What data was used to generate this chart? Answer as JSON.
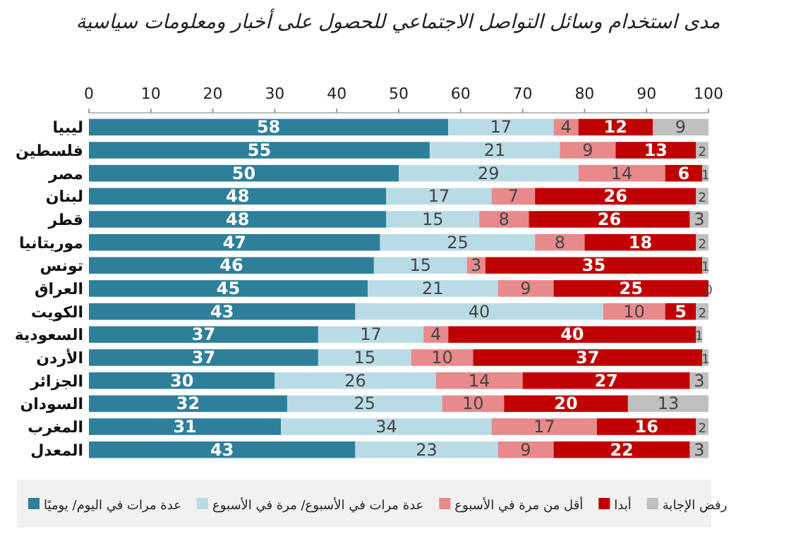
{
  "chart_data": {
    "type": "bar",
    "orientation": "horizontal",
    "stacked": true,
    "title": "مدى استخدام وسائل التواصل الاجتماعي للحصول على أخبار ومعلومات سياسية",
    "categories": [
      "ليبيا",
      "فلسطين",
      "مصر",
      "لبنان",
      "قطر",
      "موريتانيا",
      "تونس",
      "العراق",
      "الكويت",
      "السعودية",
      "الأردن",
      "الجزائر",
      "السودان",
      "المغرب",
      "المعدل"
    ],
    "series": [
      {
        "name": "عدة مرات في اليوم/ يوميًا",
        "color": "#2e7f9a",
        "values": [
          58,
          55,
          50,
          48,
          48,
          47,
          46,
          45,
          43,
          37,
          37,
          30,
          32,
          31,
          43
        ]
      },
      {
        "name": "عدة مرات في الأسبوع/ مرة في الأسبوع",
        "color": "#b9dbe6",
        "values": [
          17,
          21,
          29,
          17,
          15,
          25,
          15,
          21,
          40,
          17,
          15,
          26,
          25,
          34,
          23
        ]
      },
      {
        "name": "أقل من مرة في الأسبوع",
        "color": "#e8898b",
        "values": [
          4,
          9,
          14,
          7,
          8,
          8,
          3,
          9,
          10,
          4,
          10,
          14,
          10,
          17,
          9
        ]
      },
      {
        "name": "أبدا",
        "color": "#c00000",
        "values": [
          12,
          13,
          6,
          26,
          26,
          18,
          35,
          25,
          5,
          40,
          37,
          27,
          20,
          16,
          22
        ]
      },
      {
        "name": "رفض الإجابة",
        "color": "#bfbfbf",
        "values": [
          9,
          2,
          1,
          2,
          3,
          2,
          1,
          0,
          2,
          1,
          1,
          3,
          13,
          2,
          3
        ]
      }
    ],
    "xlim": [
      0,
      100
    ],
    "xticks": [
      0,
      10,
      20,
      30,
      40,
      50,
      60,
      70,
      80,
      90,
      100
    ],
    "data_labels": true,
    "legend": "bottom",
    "grid": false
  }
}
